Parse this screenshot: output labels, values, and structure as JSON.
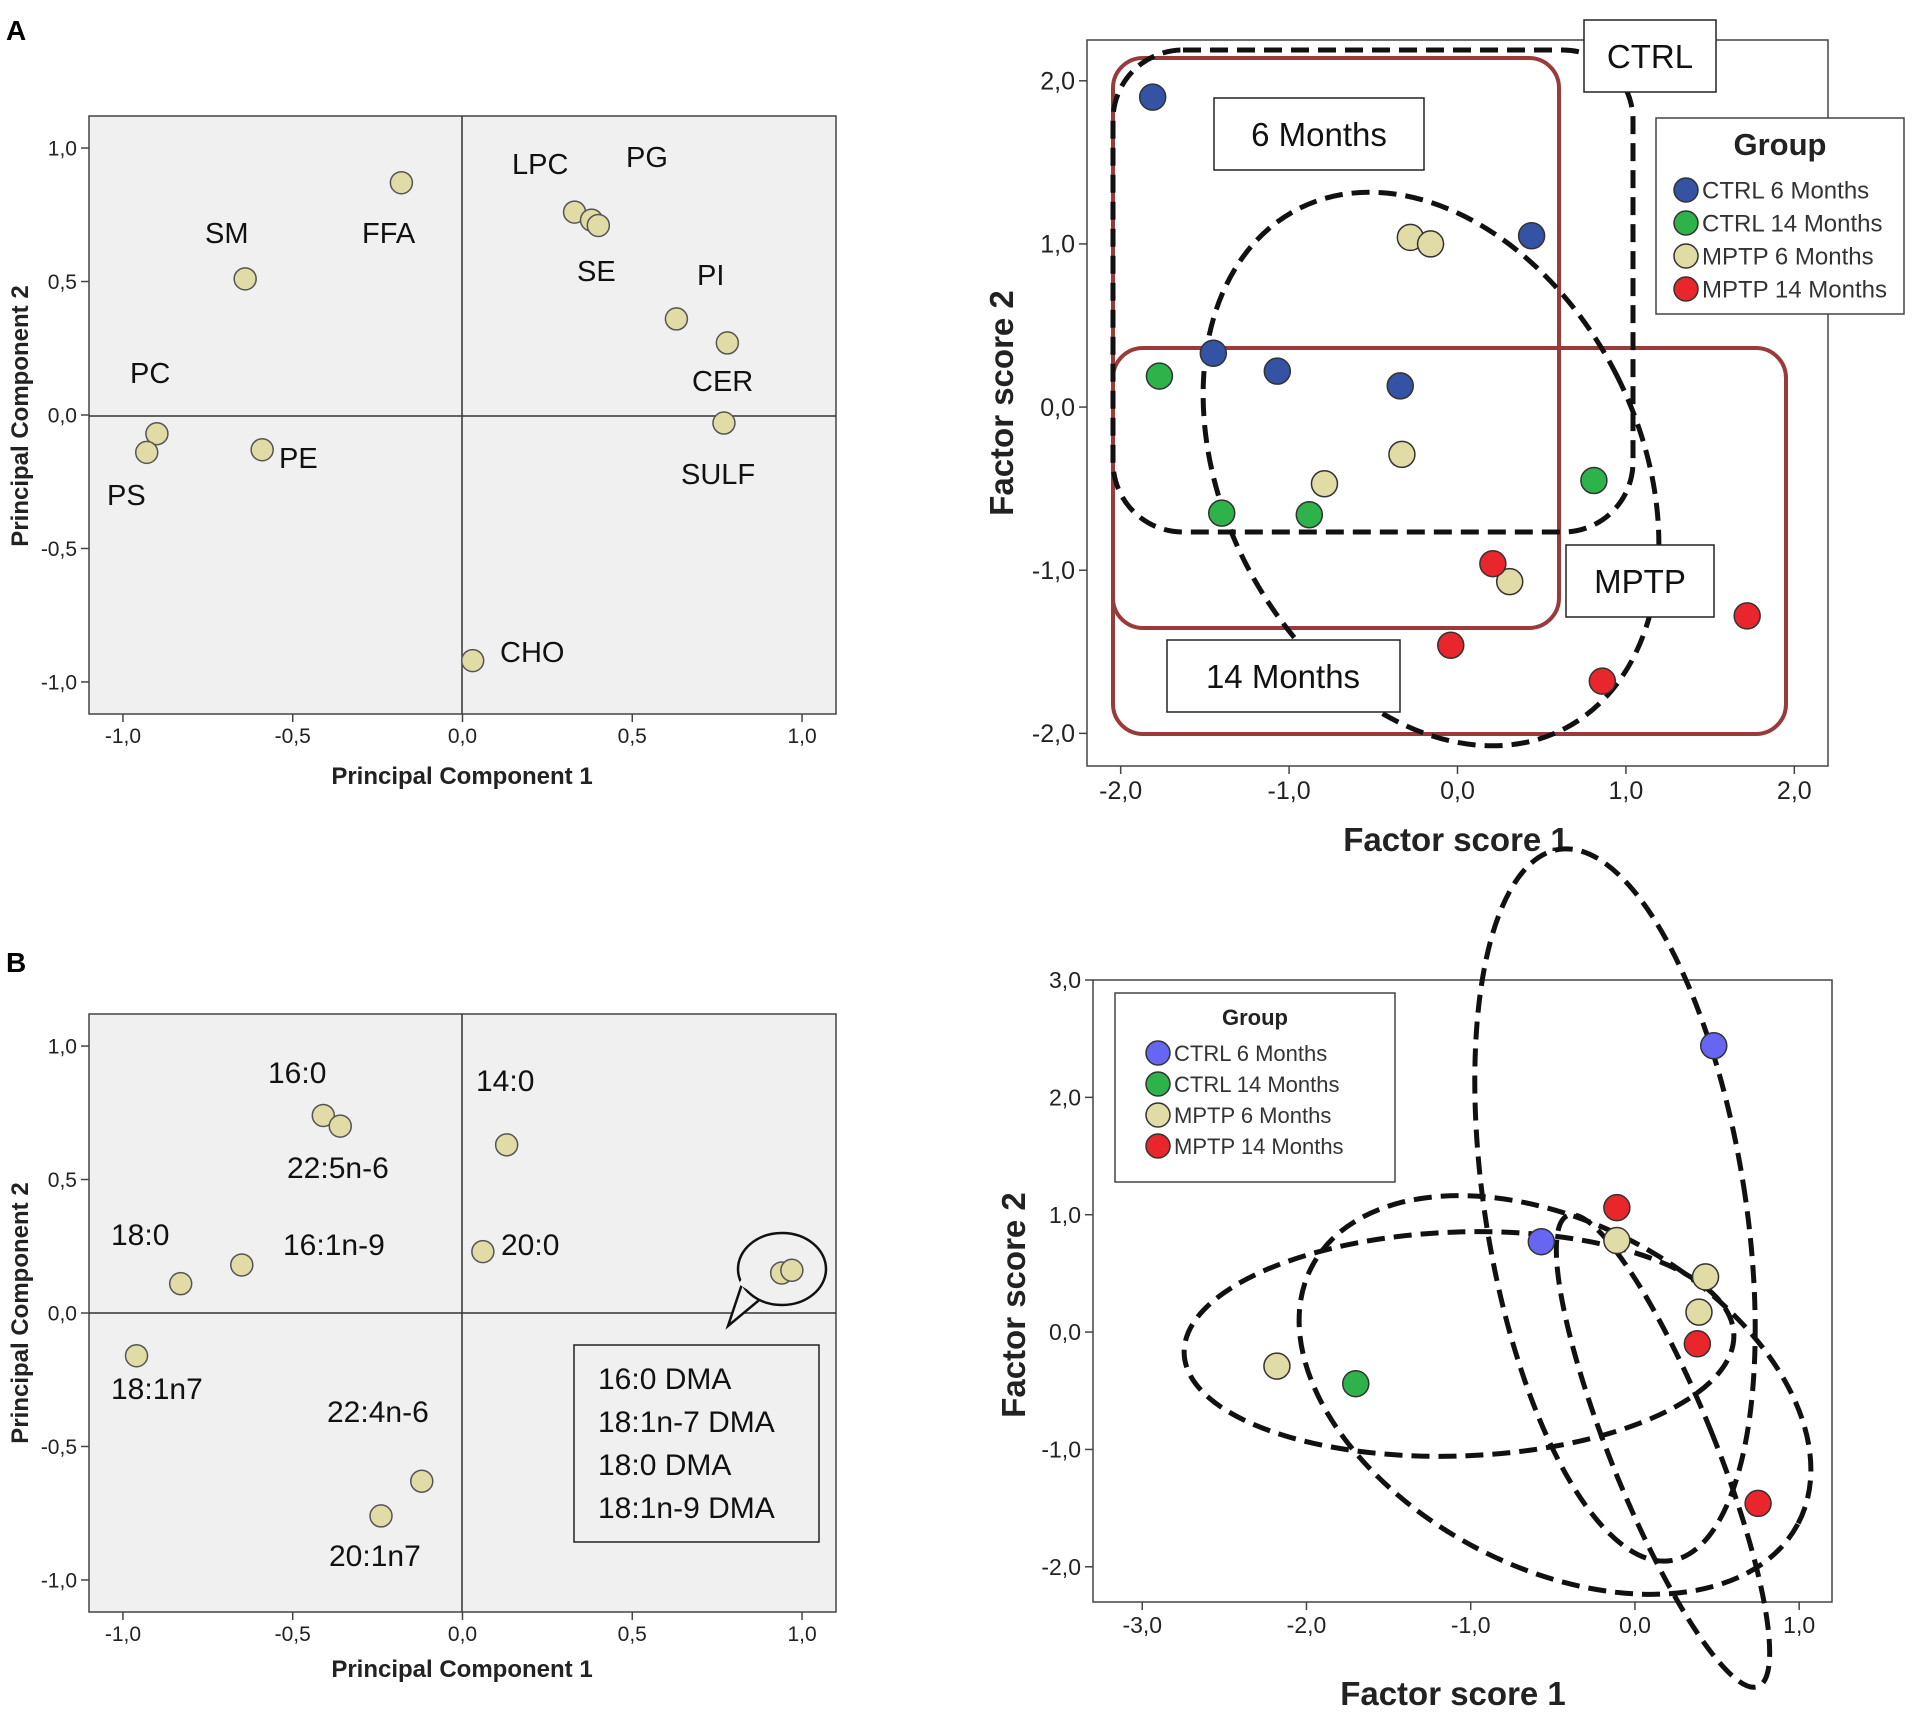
{
  "panels": {
    "a": "A",
    "b": "B"
  },
  "colors": {
    "ctrl6": "#3453A5",
    "ctrl14": "#2DB34A",
    "mptp6": "#E1DBA5",
    "mptp14": "#E8262C",
    "ctrl6_b": "#6666F2",
    "box": "#9A3B3B",
    "plot_bg": "#F0F0F0"
  },
  "chart_data": [
    {
      "id": "A1",
      "type": "scatter",
      "title": "",
      "xlabel": "Principal Component 1",
      "ylabel": "Principal Component 2",
      "xlim": [
        -1.1,
        1.1
      ],
      "ylim": [
        -1.12,
        1.12
      ],
      "xticks": [
        "-1,0",
        "-0,5",
        "0,0",
        "0,5",
        "1,0"
      ],
      "yticks": [
        "-1,0",
        "-0,5",
        "0,0",
        "0,5",
        "1,0"
      ],
      "points": [
        {
          "label": "FFA",
          "x": -0.18,
          "y": 0.87
        },
        {
          "label": "SM",
          "x": -0.64,
          "y": 0.51
        },
        {
          "label": "LPC",
          "x": 0.33,
          "y": 0.76
        },
        {
          "label": "SE",
          "x": 0.38,
          "y": 0.73
        },
        {
          "label": "PG",
          "x": 0.4,
          "y": 0.71
        },
        {
          "label": "PI",
          "x": 0.63,
          "y": 0.36
        },
        {
          "label": "CER",
          "x": 0.78,
          "y": 0.27
        },
        {
          "label": "SULF",
          "x": 0.77,
          "y": -0.03
        },
        {
          "label": "PC",
          "x": -0.9,
          "y": -0.07
        },
        {
          "label": "PS",
          "x": -0.93,
          "y": -0.14
        },
        {
          "label": "PE",
          "x": -0.59,
          "y": -0.13
        },
        {
          "label": "CHO",
          "x": 0.03,
          "y": -0.92
        }
      ]
    },
    {
      "id": "A2",
      "type": "scatter",
      "title": "",
      "xlabel": "Factor score 1",
      "ylabel": "Factor score 2",
      "xlim": [
        -2.2,
        2.2
      ],
      "ylim": [
        -2.2,
        2.25
      ],
      "xticks": [
        "-2,0",
        "-1,0",
        "0,0",
        "1,0",
        "2,0"
      ],
      "yticks": [
        "-2,0",
        "-1,0",
        "0,0",
        "1,0",
        "2,0"
      ],
      "legend": {
        "title": "Group",
        "position": "top-right",
        "items": [
          {
            "label": "CTRL 6 Months",
            "color": "#3453A5"
          },
          {
            "label": "CTRL 14 Months",
            "color": "#2DB34A"
          },
          {
            "label": "MPTP 6 Months",
            "color": "#E1DBA5"
          },
          {
            "label": "MPTP 14 Months",
            "color": "#E8262C"
          }
        ]
      },
      "annotations": [
        "CTRL",
        "6 Months",
        "MPTP",
        "14 Months"
      ],
      "series": [
        {
          "name": "CTRL 6 Months",
          "color": "#3453A5",
          "x": [
            -1.81,
            0.44,
            -1.45,
            -1.07,
            -0.34
          ],
          "y": [
            1.9,
            1.05,
            0.33,
            0.22,
            0.13
          ]
        },
        {
          "name": "CTRL 14 Months",
          "color": "#2DB34A",
          "x": [
            -1.77,
            -1.4,
            -0.88,
            0.81
          ],
          "y": [
            0.19,
            -0.65,
            -0.66,
            -0.45
          ]
        },
        {
          "name": "MPTP 6 Months",
          "color": "#E1DBA5",
          "x": [
            -0.28,
            -0.16,
            -0.79,
            -0.33,
            0.31
          ],
          "y": [
            1.04,
            1.0,
            -0.47,
            -0.29,
            -1.07
          ]
        },
        {
          "name": "MPTP 14 Months",
          "color": "#E8262C",
          "x": [
            0.21,
            -0.04,
            0.86,
            1.72
          ],
          "y": [
            -0.96,
            -1.46,
            -1.68,
            -1.28
          ]
        }
      ]
    },
    {
      "id": "B1",
      "type": "scatter",
      "title": "",
      "xlabel": "Principal Component 1",
      "ylabel": "Principal Component 2",
      "xlim": [
        -1.1,
        1.1
      ],
      "ylim": [
        -1.12,
        1.12
      ],
      "xticks": [
        "-1,0",
        "-0,5",
        "0,0",
        "0,5",
        "1,0"
      ],
      "yticks": [
        "-1,0",
        "-0,5",
        "0,0",
        "0,5",
        "1,0"
      ],
      "callout_lines": [
        "16:0 DMA",
        "18:1n-7 DMA",
        "18:0 DMA",
        "18:1n-9 DMA"
      ],
      "points": [
        {
          "label": "16:0",
          "x": -0.41,
          "y": 0.74
        },
        {
          "label": "22:5n-6",
          "x": -0.36,
          "y": 0.7
        },
        {
          "label": "14:0",
          "x": 0.13,
          "y": 0.63
        },
        {
          "label": "18:0",
          "x": -0.83,
          "y": 0.11
        },
        {
          "label": "16:1n-9",
          "x": -0.65,
          "y": 0.18
        },
        {
          "label": "20:0",
          "x": 0.06,
          "y": 0.23
        },
        {
          "label": "18:1n7",
          "x": -0.96,
          "y": -0.16
        },
        {
          "label": "22:4n-6",
          "x": -0.12,
          "y": -0.63
        },
        {
          "label": "20:1n7",
          "x": -0.24,
          "y": -0.76
        },
        {
          "label": "",
          "x": 0.94,
          "y": 0.15
        },
        {
          "label": "",
          "x": 0.97,
          "y": 0.16
        }
      ]
    },
    {
      "id": "B2",
      "type": "scatter",
      "title": "",
      "xlabel": "Factor score 1",
      "ylabel": "Factor score 2",
      "xlim": [
        -3.3,
        1.2
      ],
      "ylim": [
        -2.3,
        3.0
      ],
      "xticks": [
        "-3,0",
        "-2,0",
        "-1,0",
        "0,0",
        "1,0"
      ],
      "yticks": [
        "-2,0",
        "-1,0",
        "0,0",
        "1,0",
        "2,0",
        "3,0"
      ],
      "legend": {
        "title": "Group",
        "position": "top-left",
        "items": [
          {
            "label": "CTRL 6 Months",
            "color": "#6666F2"
          },
          {
            "label": "CTRL 14 Months",
            "color": "#2DB34A"
          },
          {
            "label": "MPTP 6 Months",
            "color": "#E1DBA5"
          },
          {
            "label": "MPTP 14  Months",
            "color": "#E8262C"
          }
        ]
      },
      "series": [
        {
          "name": "CTRL 6 Months",
          "color": "#6666F2",
          "x": [
            0.48,
            -0.57
          ],
          "y": [
            2.44,
            0.77
          ]
        },
        {
          "name": "CTRL 14 Months",
          "color": "#2DB34A",
          "x": [
            -1.7
          ],
          "y": [
            -0.44
          ]
        },
        {
          "name": "MPTP 6 Months",
          "color": "#E1DBA5",
          "x": [
            -2.18,
            -0.11,
            0.43,
            0.39
          ],
          "y": [
            -0.29,
            0.78,
            0.47,
            0.17
          ]
        },
        {
          "name": "MPTP 14 Months",
          "color": "#E8262C",
          "x": [
            -0.11,
            0.38,
            0.75
          ],
          "y": [
            1.06,
            -0.1,
            -1.46
          ]
        }
      ]
    }
  ]
}
